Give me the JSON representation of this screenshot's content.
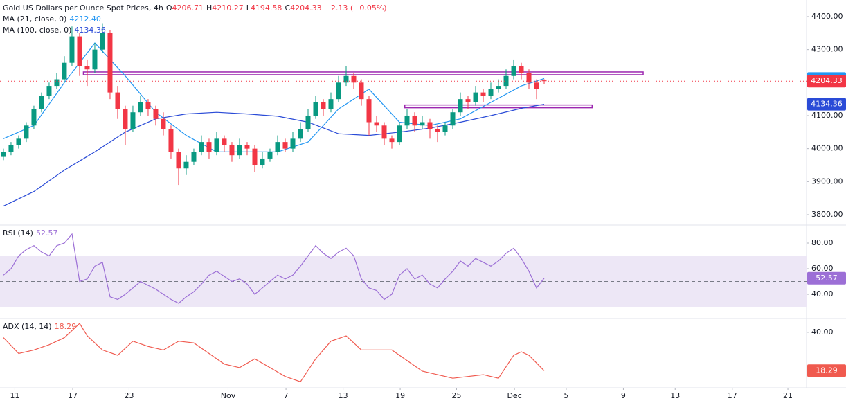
{
  "chart_data": [
    {
      "type": "candlestick",
      "title": "Gold US Dollars per Ounce Spot Prices, 4h",
      "ohlc_keys": [
        "O",
        "H",
        "L",
        "C"
      ],
      "change": "−2.13 (−0.05%)",
      "up_color": "#089981",
      "down_color": "#f23645",
      "xlim": [
        -0.45,
        105.45
      ],
      "ylim": [
        3768.5,
        4450.3
      ],
      "grid": false,
      "yticks": [
        {
          "value": 3800,
          "label": "3800.00"
        },
        {
          "value": 3900,
          "label": "3900.00"
        },
        {
          "value": 4000,
          "label": "4000.00"
        },
        {
          "value": 4100,
          "label": "4100.00"
        },
        {
          "value": 4200,
          "label": "4200.00"
        },
        {
          "value": 4300,
          "label": "4300.00"
        },
        {
          "value": 4400,
          "label": "4400.00"
        }
      ],
      "ohlc": [
        [
          3975,
          4000,
          3965,
          3990
        ],
        [
          3990,
          4020,
          3980,
          4010
        ],
        [
          4010,
          4040,
          4000,
          4030
        ],
        [
          4030,
          4080,
          4020,
          4070
        ],
        [
          4070,
          4130,
          4060,
          4120
        ],
        [
          4120,
          4170,
          4110,
          4160
        ],
        [
          4160,
          4200,
          4150,
          4190
        ],
        [
          4190,
          4230,
          4180,
          4210
        ],
        [
          4210,
          4280,
          4200,
          4260
        ],
        [
          4260,
          4370,
          4250,
          4340
        ],
        [
          4340,
          4350,
          4220,
          4250
        ],
        [
          4250,
          4270,
          4190,
          4240
        ],
        [
          4240,
          4320,
          4230,
          4300
        ],
        [
          4300,
          4380,
          4290,
          4350
        ],
        [
          4350,
          4360,
          4150,
          4170
        ],
        [
          4170,
          4190,
          4090,
          4120
        ],
        [
          4120,
          4130,
          4010,
          4060
        ],
        [
          4060,
          4130,
          4050,
          4110
        ],
        [
          4110,
          4160,
          4100,
          4140
        ],
        [
          4140,
          4150,
          4100,
          4120
        ],
        [
          4120,
          4130,
          4070,
          4090
        ],
        [
          4090,
          4110,
          4040,
          4060
        ],
        [
          4060,
          4070,
          3970,
          3990
        ],
        [
          3990,
          4000,
          3890,
          3940
        ],
        [
          3940,
          3980,
          3920,
          3960
        ],
        [
          3960,
          4000,
          3950,
          3990
        ],
        [
          3990,
          4040,
          3980,
          4020
        ],
        [
          4020,
          4030,
          3970,
          3990
        ],
        [
          3990,
          4050,
          3980,
          4030
        ],
        [
          4030,
          4040,
          3990,
          4010
        ],
        [
          4010,
          4020,
          3960,
          3980
        ],
        [
          3980,
          4030,
          3970,
          4010
        ],
        [
          4010,
          4020,
          3980,
          4000
        ],
        [
          4000,
          4010,
          3930,
          3950
        ],
        [
          3950,
          3990,
          3940,
          3970
        ],
        [
          3970,
          4000,
          3960,
          3990
        ],
        [
          3990,
          4040,
          3980,
          4020
        ],
        [
          4020,
          4030,
          3990,
          4000
        ],
        [
          4000,
          4050,
          3990,
          4030
        ],
        [
          4030,
          4080,
          4020,
          4060
        ],
        [
          4060,
          4120,
          4050,
          4100
        ],
        [
          4100,
          4160,
          4090,
          4140
        ],
        [
          4140,
          4150,
          4100,
          4120
        ],
        [
          4120,
          4170,
          4110,
          4150
        ],
        [
          4150,
          4220,
          4140,
          4200
        ],
        [
          4200,
          4250,
          4190,
          4220
        ],
        [
          4220,
          4230,
          4180,
          4200
        ],
        [
          4200,
          4210,
          4130,
          4150
        ],
        [
          4150,
          4160,
          4040,
          4080
        ],
        [
          4080,
          4100,
          4050,
          4070
        ],
        [
          4070,
          4080,
          4010,
          4030
        ],
        [
          4030,
          4040,
          4000,
          4020
        ],
        [
          4020,
          4080,
          4010,
          4070
        ],
        [
          4070,
          4120,
          4060,
          4100
        ],
        [
          4100,
          4110,
          4050,
          4070
        ],
        [
          4070,
          4100,
          4060,
          4080
        ],
        [
          4080,
          4090,
          4030,
          4060
        ],
        [
          4060,
          4070,
          4020,
          4050
        ],
        [
          4050,
          4080,
          4040,
          4070
        ],
        [
          4070,
          4120,
          4060,
          4110
        ],
        [
          4110,
          4170,
          4100,
          4150
        ],
        [
          4150,
          4160,
          4120,
          4140
        ],
        [
          4140,
          4190,
          4130,
          4170
        ],
        [
          4170,
          4180,
          4140,
          4160
        ],
        [
          4160,
          4200,
          4150,
          4180
        ],
        [
          4180,
          4210,
          4170,
          4190
        ],
        [
          4190,
          4240,
          4180,
          4220
        ],
        [
          4220,
          4270,
          4210,
          4250
        ],
        [
          4250,
          4260,
          4210,
          4230
        ],
        [
          4230,
          4240,
          4180,
          4200
        ],
        [
          4200,
          4210,
          4150,
          4180
        ],
        [
          4206.71,
          4210.27,
          4194.58,
          4204.33
        ]
      ],
      "series": [
        {
          "name": "MA (21, close, 0)",
          "color": "#2196f3",
          "last_label": "4212.40",
          "x": [
            0,
            4,
            8,
            12,
            16,
            20,
            24,
            28,
            32,
            36,
            40,
            44,
            48,
            52,
            56,
            60,
            64,
            68,
            71
          ],
          "values": [
            4030,
            4070,
            4200,
            4320,
            4220,
            4110,
            4040,
            3990,
            3990,
            3990,
            4020,
            4120,
            4180,
            4080,
            4070,
            4090,
            4140,
            4190,
            4212.4
          ]
        },
        {
          "name": "MA (100, close, 0)",
          "color": "#2a4bd7",
          "x": [
            0,
            4,
            8,
            12,
            16,
            20,
            24,
            28,
            32,
            36,
            40,
            44,
            48,
            52,
            56,
            60,
            64,
            68,
            71
          ],
          "values": [
            3826,
            3870,
            3935,
            3990,
            4050,
            4090,
            4105,
            4110,
            4105,
            4098,
            4080,
            4045,
            4040,
            4050,
            4062,
            4080,
            4100,
            4122,
            4134.36
          ]
        }
      ],
      "levels": [
        {
          "value": 4228,
          "start": 10.5,
          "end": 84
        },
        {
          "value": 4128,
          "start": 52.7,
          "end": 77.3
        }
      ],
      "level_color": "#9c27b0"
    },
    {
      "type": "line",
      "xlim": [
        -0.45,
        105.45
      ],
      "ylim": [
        21.1,
        94.05
      ],
      "yticks": [
        {
          "value": 40,
          "label": "40.00"
        },
        {
          "value": 60,
          "label": "60.00"
        },
        {
          "value": 80,
          "label": "80.00"
        }
      ],
      "bands": [
        70,
        50,
        30
      ],
      "band_fill": "#ede7f6",
      "series": [
        {
          "name": "RSI (14)",
          "color": "#9c6fd6",
          "x": [
            0,
            1,
            2,
            3,
            4,
            5,
            6,
            7,
            8,
            9,
            10,
            11,
            12,
            13,
            14,
            15,
            16,
            17,
            18,
            19,
            20,
            21,
            22,
            23,
            24,
            25,
            26,
            27,
            28,
            29,
            30,
            31,
            32,
            33,
            34,
            35,
            36,
            37,
            38,
            39,
            40,
            41,
            42,
            43,
            44,
            45,
            46,
            47,
            48,
            49,
            50,
            51,
            52,
            53,
            54,
            55,
            56,
            57,
            58,
            59,
            60,
            61,
            62,
            63,
            64,
            65,
            66,
            67,
            68,
            69,
            70,
            71
          ],
          "values": [
            55,
            60,
            70,
            75,
            78,
            73,
            70,
            78,
            80,
            87,
            50,
            52,
            62,
            65,
            38,
            36,
            40,
            45,
            50,
            47,
            44,
            40,
            36,
            33,
            38,
            42,
            48,
            55,
            58,
            54,
            50,
            52,
            48,
            40,
            45,
            50,
            55,
            52,
            55,
            62,
            70,
            78,
            72,
            68,
            73,
            76,
            70,
            52,
            45,
            43,
            36,
            40,
            55,
            60,
            52,
            55,
            48,
            45,
            52,
            58,
            66,
            62,
            68,
            65,
            62,
            66,
            72,
            76,
            68,
            58,
            45,
            52.57
          ]
        }
      ]
    },
    {
      "type": "line",
      "xlim": [
        -0.45,
        105.45
      ],
      "ylim": [
        8.6,
        47.8
      ],
      "yticks": [
        {
          "value": 40,
          "label": "40.00"
        }
      ],
      "xticks": [
        {
          "value": 1.5,
          "label": "11"
        },
        {
          "value": 9.1,
          "label": "17"
        },
        {
          "value": 16.5,
          "label": "23"
        },
        {
          "value": 29.5,
          "label": "Nov"
        },
        {
          "value": 37.1,
          "label": "7"
        },
        {
          "value": 44.6,
          "label": "13"
        },
        {
          "value": 52.1,
          "label": "19"
        },
        {
          "value": 59.5,
          "label": "25"
        },
        {
          "value": 67.1,
          "label": "Dec"
        },
        {
          "value": 73.9,
          "label": "5"
        },
        {
          "value": 81.4,
          "label": "9"
        },
        {
          "value": 88.2,
          "label": "13"
        },
        {
          "value": 95.7,
          "label": "17"
        },
        {
          "value": 103,
          "label": "21"
        }
      ],
      "series": [
        {
          "name": "ADX (14, 14)",
          "color": "#f05a4f",
          "x": [
            0,
            2,
            4,
            6,
            8,
            10,
            11,
            13,
            15,
            17,
            19,
            21,
            23,
            25,
            27,
            29,
            31,
            33,
            35,
            37,
            39,
            41,
            43,
            45,
            47,
            49,
            51,
            53,
            55,
            57,
            59,
            61,
            63,
            65,
            67,
            68,
            69,
            71
          ],
          "values": [
            37,
            28,
            30,
            33,
            37,
            45,
            38,
            30,
            27,
            35,
            32,
            30,
            35,
            34,
            28,
            22,
            20,
            25,
            20,
            15,
            12,
            25,
            35,
            38,
            30,
            30,
            30,
            24,
            18,
            16,
            14,
            15,
            16,
            14,
            27,
            29,
            27,
            18.29
          ]
        }
      ]
    }
  ]
}
